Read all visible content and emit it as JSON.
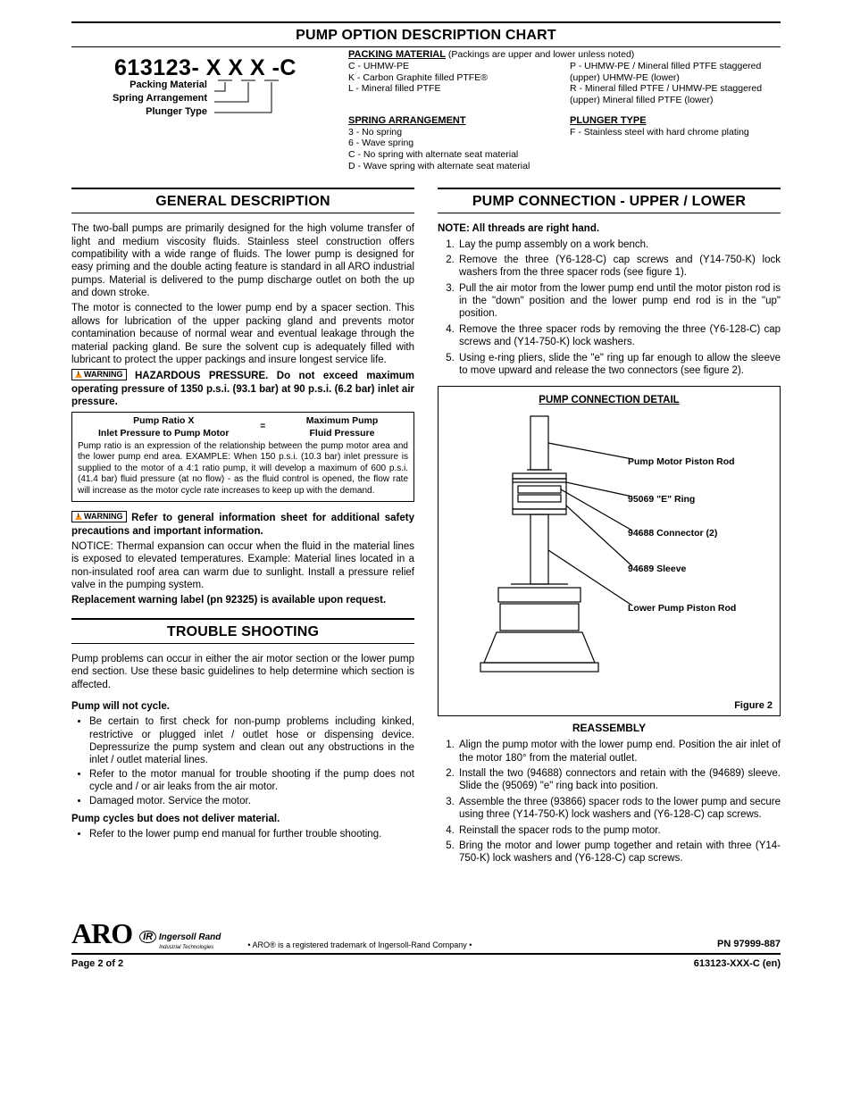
{
  "sections": {
    "optionChart": "PUMP OPTION DESCRIPTION CHART",
    "general": "GENERAL DESCRIPTION",
    "trouble": "TROUBLE SHOOTING",
    "pumpConn": "PUMP CONNECTION - UPPER / LOWER",
    "reassembly": "REASSEMBLY"
  },
  "model": {
    "code": "613123- X  X  X -C",
    "labels": [
      "Packing Material",
      "Spring Arrangement",
      "Plunger Type"
    ]
  },
  "options": {
    "packingHead": "PACKING MATERIAL",
    "packingNote": "(Packings are upper and lower unless noted)",
    "packingLeft": [
      "C -  UHMW-PE",
      "K -  Carbon Graphite filled PTFE®",
      "L -  Mineral filled PTFE"
    ],
    "packingRight": [
      "P -  UHMW-PE / Mineral filled PTFE staggered (upper) UHMW-PE (lower)",
      "R -  Mineral filled PTFE / UHMW-PE staggered (upper) Mineral filled PTFE (lower)"
    ],
    "springHead": "SPRING ARRANGEMENT",
    "springItems": [
      "3 -  No spring",
      "6 -  Wave spring",
      "C -  No spring with alternate seat material",
      "D -  Wave spring with alternate seat material"
    ],
    "plungerHead": "PLUNGER TYPE",
    "plungerItems": [
      "F -  Stainless steel with hard chrome plating"
    ]
  },
  "general": {
    "p1": "The two-ball pumps are primarily designed for the high volume transfer of light and medium viscosity fluids. Stainless steel construction offers compatibility with a wide range of fluids. The lower pump is designed for easy priming and the double acting feature is standard in all ARO industrial pumps. Material is delivered to the pump discharge outlet on both the up and down stroke.",
    "p2": "The motor is connected to the lower pump end by a spacer section. This allows for lubrication of the upper packing gland and prevents motor contamination because of normal wear and eventual leakage through the material packing gland. Be sure the solvent cup is adequately filled with lubricant to protect the upper packings and insure longest service life.",
    "warn1": "HAZARDOUS PRESSURE. Do not exceed maximum operating pressure of 1350 p.s.i. (93.1 bar) at 90 p.s.i. (6.2 bar) inlet air pressure.",
    "ratio": {
      "left": "Pump Ratio X\nInlet Pressure to Pump Motor",
      "eq": "=",
      "right": "Maximum Pump\nFluid Pressure",
      "note": "Pump ratio is an expression of the relationship between the pump motor area and the lower pump end area. EXAMPLE: When 150 p.s.i. (10.3 bar) inlet pressure is supplied to the motor of a 4:1 ratio pump, it will develop a maximum of 600 p.s.i. (41.4 bar) fluid pressure (at no flow) - as the fluid control is opened, the flow rate will increase as the motor cycle rate increases to keep up with the demand."
    },
    "warn2": "Refer to general information sheet for additional safety precautions and important information.",
    "notice": "NOTICE: Thermal expansion can occur when the fluid in the material lines is exposed to elevated temperatures. Example: Material lines located in a non-insulated roof area can warm due to sunlight. Install a pressure relief valve in the pumping system.",
    "replacement": "Replacement warning label (pn 92325) is available upon request."
  },
  "trouble": {
    "intro": "Pump problems can occur in either the air motor section or the lower pump end section. Use these basic guidelines to help determine which section is affected.",
    "h1": "Pump will not cycle.",
    "b1": [
      "Be certain to first check for non-pump problems including kinked, restrictive or plugged inlet / outlet hose or dispensing device. Depressurize the pump system and clean out any obstructions in the inlet / outlet material lines.",
      "Refer to the motor manual for trouble shooting if the pump does not cycle and / or air leaks from the air motor.",
      "Damaged motor. Service the motor."
    ],
    "h2": "Pump cycles but does not deliver material.",
    "b2": [
      "Refer to the lower pump end manual for further trouble shooting."
    ]
  },
  "conn": {
    "note": "NOTE: All threads are right hand.",
    "steps": [
      "Lay the pump assembly on a work bench.",
      "Remove the three (Y6-128-C) cap screws and (Y14-750-K) lock washers from the three spacer rods (see figure 1).",
      "Pull the air motor from the lower pump end until the motor piston rod is in the \"down\" position and the lower pump end rod is in the \"up\" position.",
      "Remove the three spacer rods by removing the three (Y6-128-C) cap screws and (Y14-750-K) lock washers.",
      "Using e-ring pliers, slide the \"e\" ring up far enough to allow the sleeve to move upward and release the two connectors (see figure 2)."
    ],
    "figTitle": "PUMP CONNECTION DETAIL",
    "figLabels": [
      "Pump Motor Piston Rod",
      "95069 \"E\" Ring",
      "94688 Connector (2)",
      "94689 Sleeve",
      "Lower Pump Piston Rod"
    ],
    "figNum": "Figure 2"
  },
  "reassembly": {
    "steps": [
      "Align the pump motor with the lower pump end. Position the air inlet of the motor 180° from the material outlet.",
      "Install the two (94688) connectors and retain with the (94689) sleeve. Slide the (95069) \"e\" ring back into position.",
      "Assemble the three (93866) spacer rods to the lower pump and secure using three (Y14-750-K) lock washers and (Y6-128-C) cap screws.",
      "Reinstall the spacer rods to the pump motor.",
      "Bring the motor and lower pump together and retain with three (Y14-750-K) lock washers and (Y6-128-C) cap screws."
    ]
  },
  "footer": {
    "trademark": "• ARO® is a registered trademark of Ingersoll-Rand Company •",
    "pn": "PN 97999-887",
    "page": "Page 2 of 2",
    "doc": "613123-XXX-C (en)",
    "aro": "ARO",
    "ir": "Ingersoll Rand",
    "irSub": "Industrial Technologies"
  },
  "warningLabel": "WARNING"
}
